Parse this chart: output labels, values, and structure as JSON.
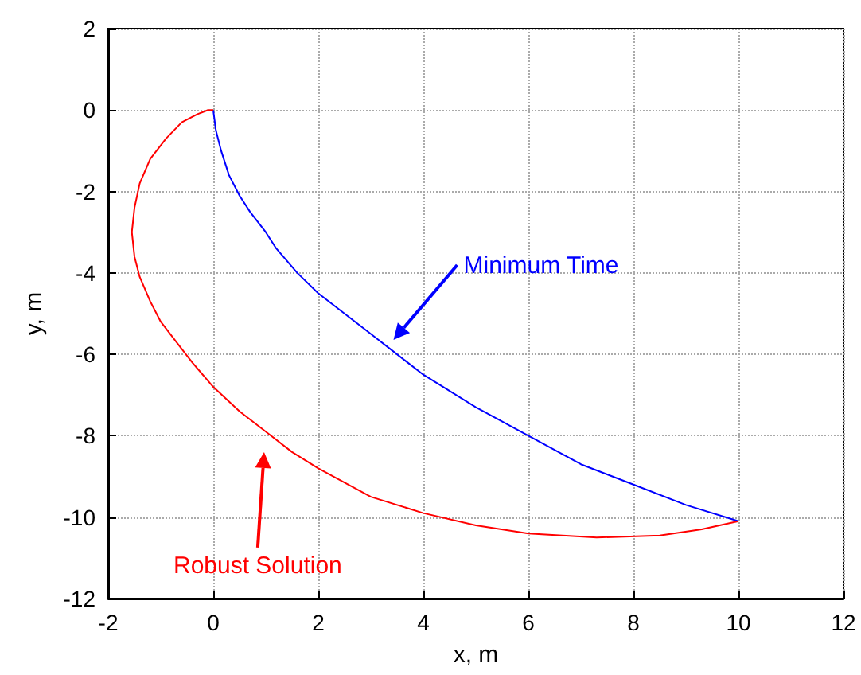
{
  "chart_data": {
    "type": "line",
    "xlabel": "x, m",
    "ylabel": "y, m",
    "xlim": [
      -2,
      12
    ],
    "xticks": [
      -2,
      0,
      2,
      4,
      6,
      8,
      10,
      12
    ],
    "ylim": [
      -12,
      2
    ],
    "yticks": [
      -12,
      -10,
      -8,
      -6,
      -4,
      -2,
      0,
      2
    ],
    "grid": true,
    "marker": "none",
    "line_style": "solid",
    "series": [
      {
        "color": "#0000ff",
        "x": [
          0,
          0.05,
          0.15,
          0.3,
          0.5,
          0.7,
          1.0,
          1.2,
          1.6,
          2.0,
          2.5,
          3.0,
          3.5,
          4.0,
          5.0,
          6.0,
          7.0,
          8.0,
          9.0,
          10.0
        ],
        "values": [
          0,
          -0.5,
          -1.0,
          -1.6,
          -2.1,
          -2.5,
          -3.0,
          -3.4,
          -4.0,
          -4.5,
          -5.0,
          -5.5,
          -6.0,
          -6.5,
          -7.3,
          -8.0,
          -8.7,
          -9.2,
          -9.7,
          -10.1
        ]
      },
      {
        "color": "#ff0000",
        "x": [
          0,
          -0.1,
          -0.3,
          -0.6,
          -0.9,
          -1.2,
          -1.4,
          -1.5,
          -1.55,
          -1.5,
          -1.4,
          -1.2,
          -1.0,
          -0.7,
          -0.4,
          0,
          0.5,
          1.0,
          1.5,
          2.0,
          3.0,
          4.0,
          5.0,
          6.0,
          7.3,
          8.5,
          9.3,
          10.0
        ],
        "values": [
          0,
          0,
          -0.1,
          -0.3,
          -0.7,
          -1.2,
          -1.8,
          -2.4,
          -3.0,
          -3.6,
          -4.1,
          -4.7,
          -5.2,
          -5.7,
          -6.2,
          -6.8,
          -7.4,
          -7.9,
          -8.4,
          -8.8,
          -9.5,
          -9.9,
          -10.2,
          -10.4,
          -10.5,
          -10.45,
          -10.3,
          -10.1
        ]
      }
    ],
    "annotations": [
      "Minimum Time",
      "Robust Solution"
    ]
  }
}
